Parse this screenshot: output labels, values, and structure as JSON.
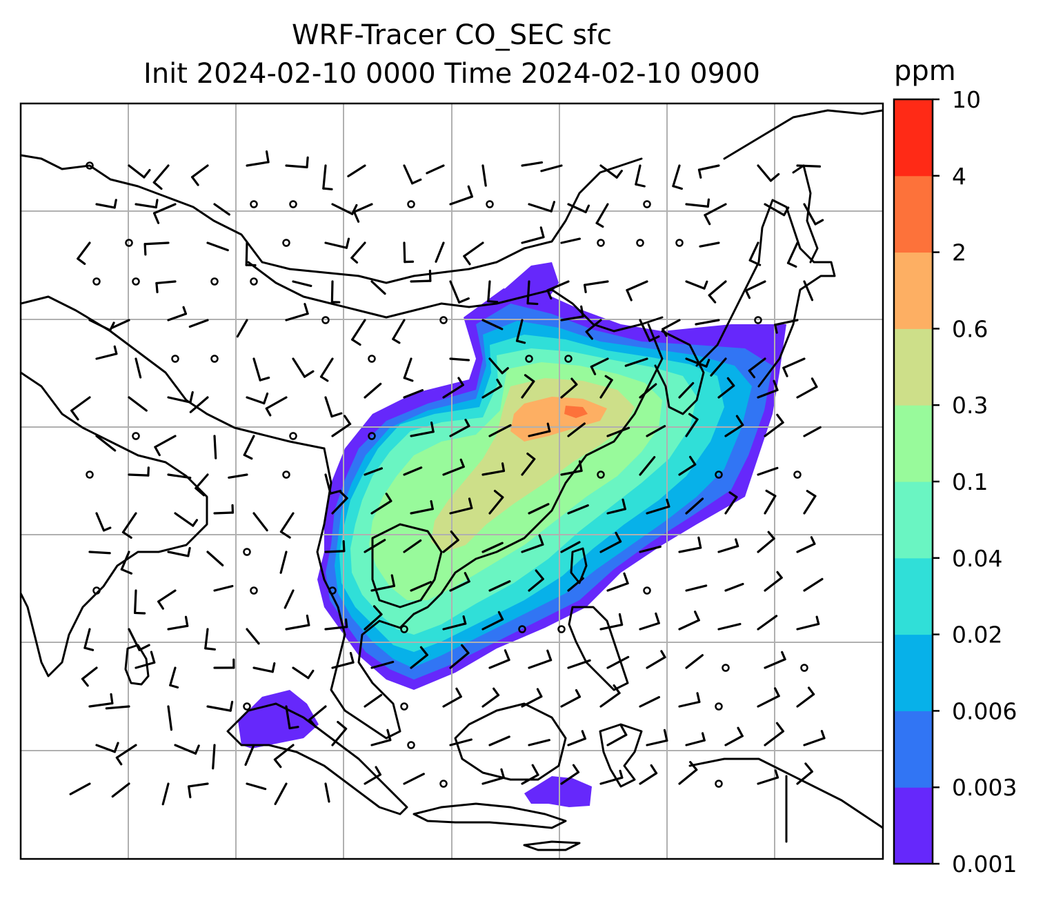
{
  "title": {
    "line1": "WRF-Tracer CO_SEC sfc",
    "line2": "Init 2024-02-10 0000 Time 2024-02-10 0900"
  },
  "colorbar": {
    "unit": "ppm",
    "levels": [
      "0.001",
      "0.003",
      "0.006",
      "0.02",
      "0.04",
      "0.1",
      "0.3",
      "0.6",
      "2",
      "4",
      "10"
    ],
    "colors": [
      "#6628fb",
      "#3175f4",
      "#07b1e9",
      "#30dfd8",
      "#6af5c2",
      "#98fa9b",
      "#cddf89",
      "#fdaf63",
      "#fd723a",
      "#ff2a16"
    ]
  },
  "map": {
    "gridlines": "on",
    "coastline_color": "#000000",
    "gridline_color": "#b0b0b0"
  }
}
